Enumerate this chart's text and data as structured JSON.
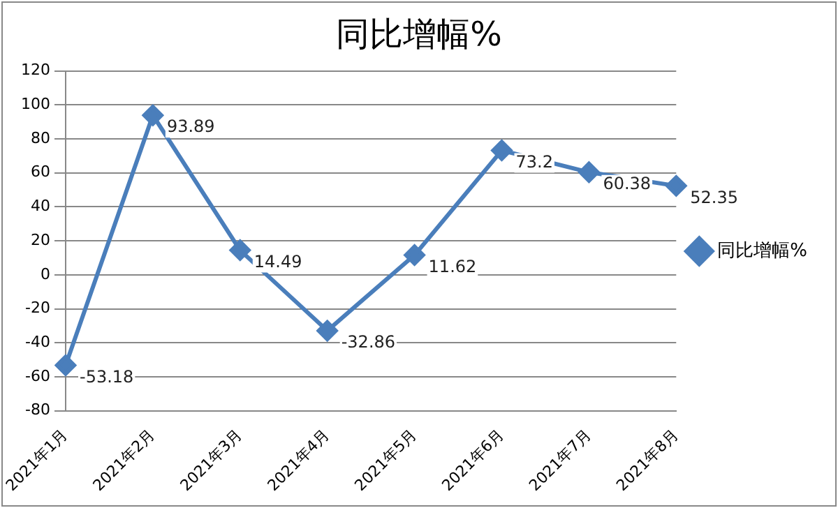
{
  "chart_data": {
    "type": "line",
    "title": "同比增幅%",
    "categories": [
      "2021年1月",
      "2021年2月",
      "2021年3月",
      "2021年4月",
      "2021年5月",
      "2021年6月",
      "2021年7月",
      "2021年8月"
    ],
    "series": [
      {
        "name": "同比增幅%",
        "color": "#4a7ebb",
        "values": [
          -53.18,
          93.89,
          14.49,
          -32.86,
          11.62,
          73.2,
          60.38,
          52.35
        ]
      }
    ],
    "ylim": [
      -80,
      120
    ],
    "yticks": [
      -80,
      -60,
      -40,
      -20,
      0,
      20,
      40,
      60,
      80,
      100,
      120
    ],
    "grid": "y",
    "legend": "right",
    "marker": "diamond",
    "line_style": "solid",
    "data_labels": true
  }
}
